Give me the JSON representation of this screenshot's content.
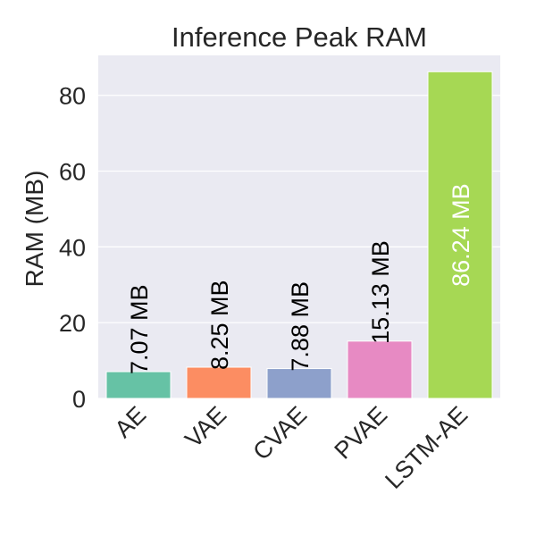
{
  "chart_data": {
    "type": "bar",
    "title": "Inference Peak RAM",
    "xlabel": "",
    "ylabel": "RAM (MB)",
    "categories": [
      "AE",
      "VAE",
      "CVAE",
      "PVAE",
      "LSTM-AE"
    ],
    "values": [
      7.07,
      8.25,
      7.88,
      15.13,
      86.24
    ],
    "value_labels": [
      "7.07 MB",
      "8.25 MB",
      "7.88 MB",
      "15.13 MB",
      "86.24 MB"
    ],
    "colors": [
      "#66c2a5",
      "#fc8d62",
      "#8da0cb",
      "#e78ac3",
      "#a6d854"
    ],
    "ylim": [
      0,
      90.55
    ],
    "yticks": [
      0,
      20,
      40,
      60,
      80
    ],
    "ytick_labels": [
      "0",
      "20",
      "40",
      "60",
      "80"
    ],
    "grid": true,
    "background": "#eaeaf2"
  }
}
